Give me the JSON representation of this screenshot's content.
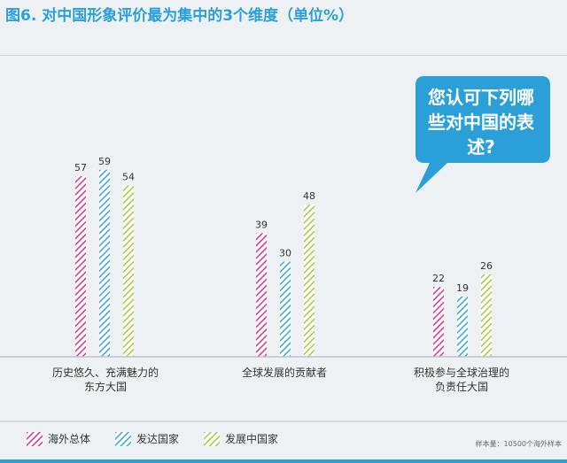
{
  "title": "图6. 对中国形象评价最为集中的3个维度（单位%）",
  "callout": {
    "text": "您认可下列哪些对中国的表述?"
  },
  "note": "样本量：10500个海外样本",
  "colors": {
    "accent": "#2a9fd8",
    "series_1": "#d8338f",
    "series_2": "#3aa6d6",
    "series_3": "#a9c93a"
  },
  "chart_data": {
    "type": "bar",
    "title": "图6. 对中国形象评价最为集中的3个维度（单位%）",
    "categories": [
      "历史悠久、充满魅力的东方大国",
      "全球发展的贡献者",
      "积极参与全球治理的负责任大国"
    ],
    "category_lines": [
      [
        "历史悠久、充满魅力的",
        "东方大国"
      ],
      [
        "全球发展的贡献者"
      ],
      [
        "积极参与全球治理的",
        "负责任大国"
      ]
    ],
    "series": [
      {
        "name": "海外总体",
        "values": [
          57,
          39,
          22
        ]
      },
      {
        "name": "发达国家",
        "values": [
          59,
          30,
          19
        ]
      },
      {
        "name": "发展中国家",
        "values": [
          54,
          48,
          26
        ]
      }
    ],
    "ylim": [
      0,
      100
    ],
    "grid": false,
    "legend_position": "bottom-left"
  }
}
